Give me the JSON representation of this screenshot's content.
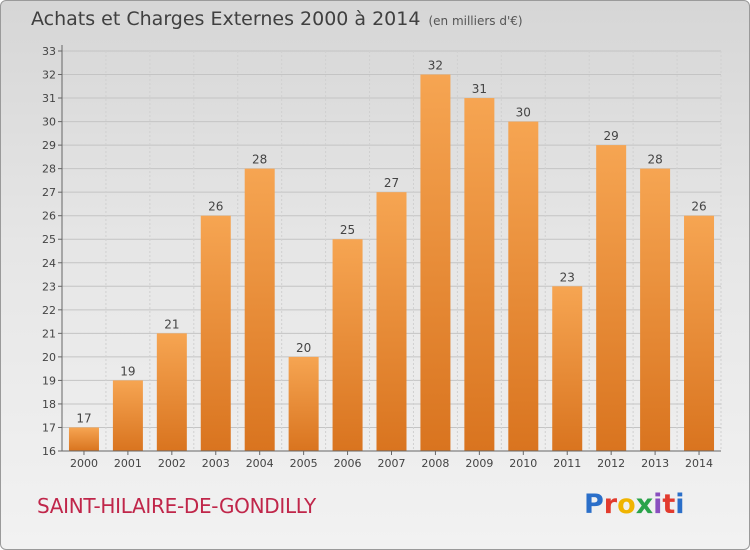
{
  "header": {
    "title": "Achats et Charges Externes 2000 à 2014",
    "subtitle": "(en milliers d'€)"
  },
  "footer": {
    "commune": "SAINT-HILAIRE-DE-GONDILLY",
    "logo_text": "Proxiti",
    "logo_colors": [
      "#2b6fc9",
      "#e23b2e",
      "#f0b400",
      "#2aa34a",
      "#8a4fbf",
      "#e23b2e",
      "#2b6fc9"
    ]
  },
  "chart_data": {
    "type": "bar",
    "categories": [
      "2000",
      "2001",
      "2002",
      "2003",
      "2004",
      "2005",
      "2006",
      "2007",
      "2008",
      "2009",
      "2010",
      "2011",
      "2012",
      "2013",
      "2014"
    ],
    "values": [
      17,
      19,
      21,
      26,
      28,
      20,
      25,
      27,
      32,
      31,
      30,
      23,
      29,
      28,
      26
    ],
    "ylim": [
      16,
      33
    ],
    "yticks": [
      16,
      17,
      18,
      19,
      20,
      21,
      22,
      23,
      24,
      25,
      26,
      27,
      28,
      29,
      30,
      31,
      32,
      33
    ],
    "bar_color_top": "#f6a552",
    "bar_color_bottom": "#d9741f",
    "grid": true
  }
}
